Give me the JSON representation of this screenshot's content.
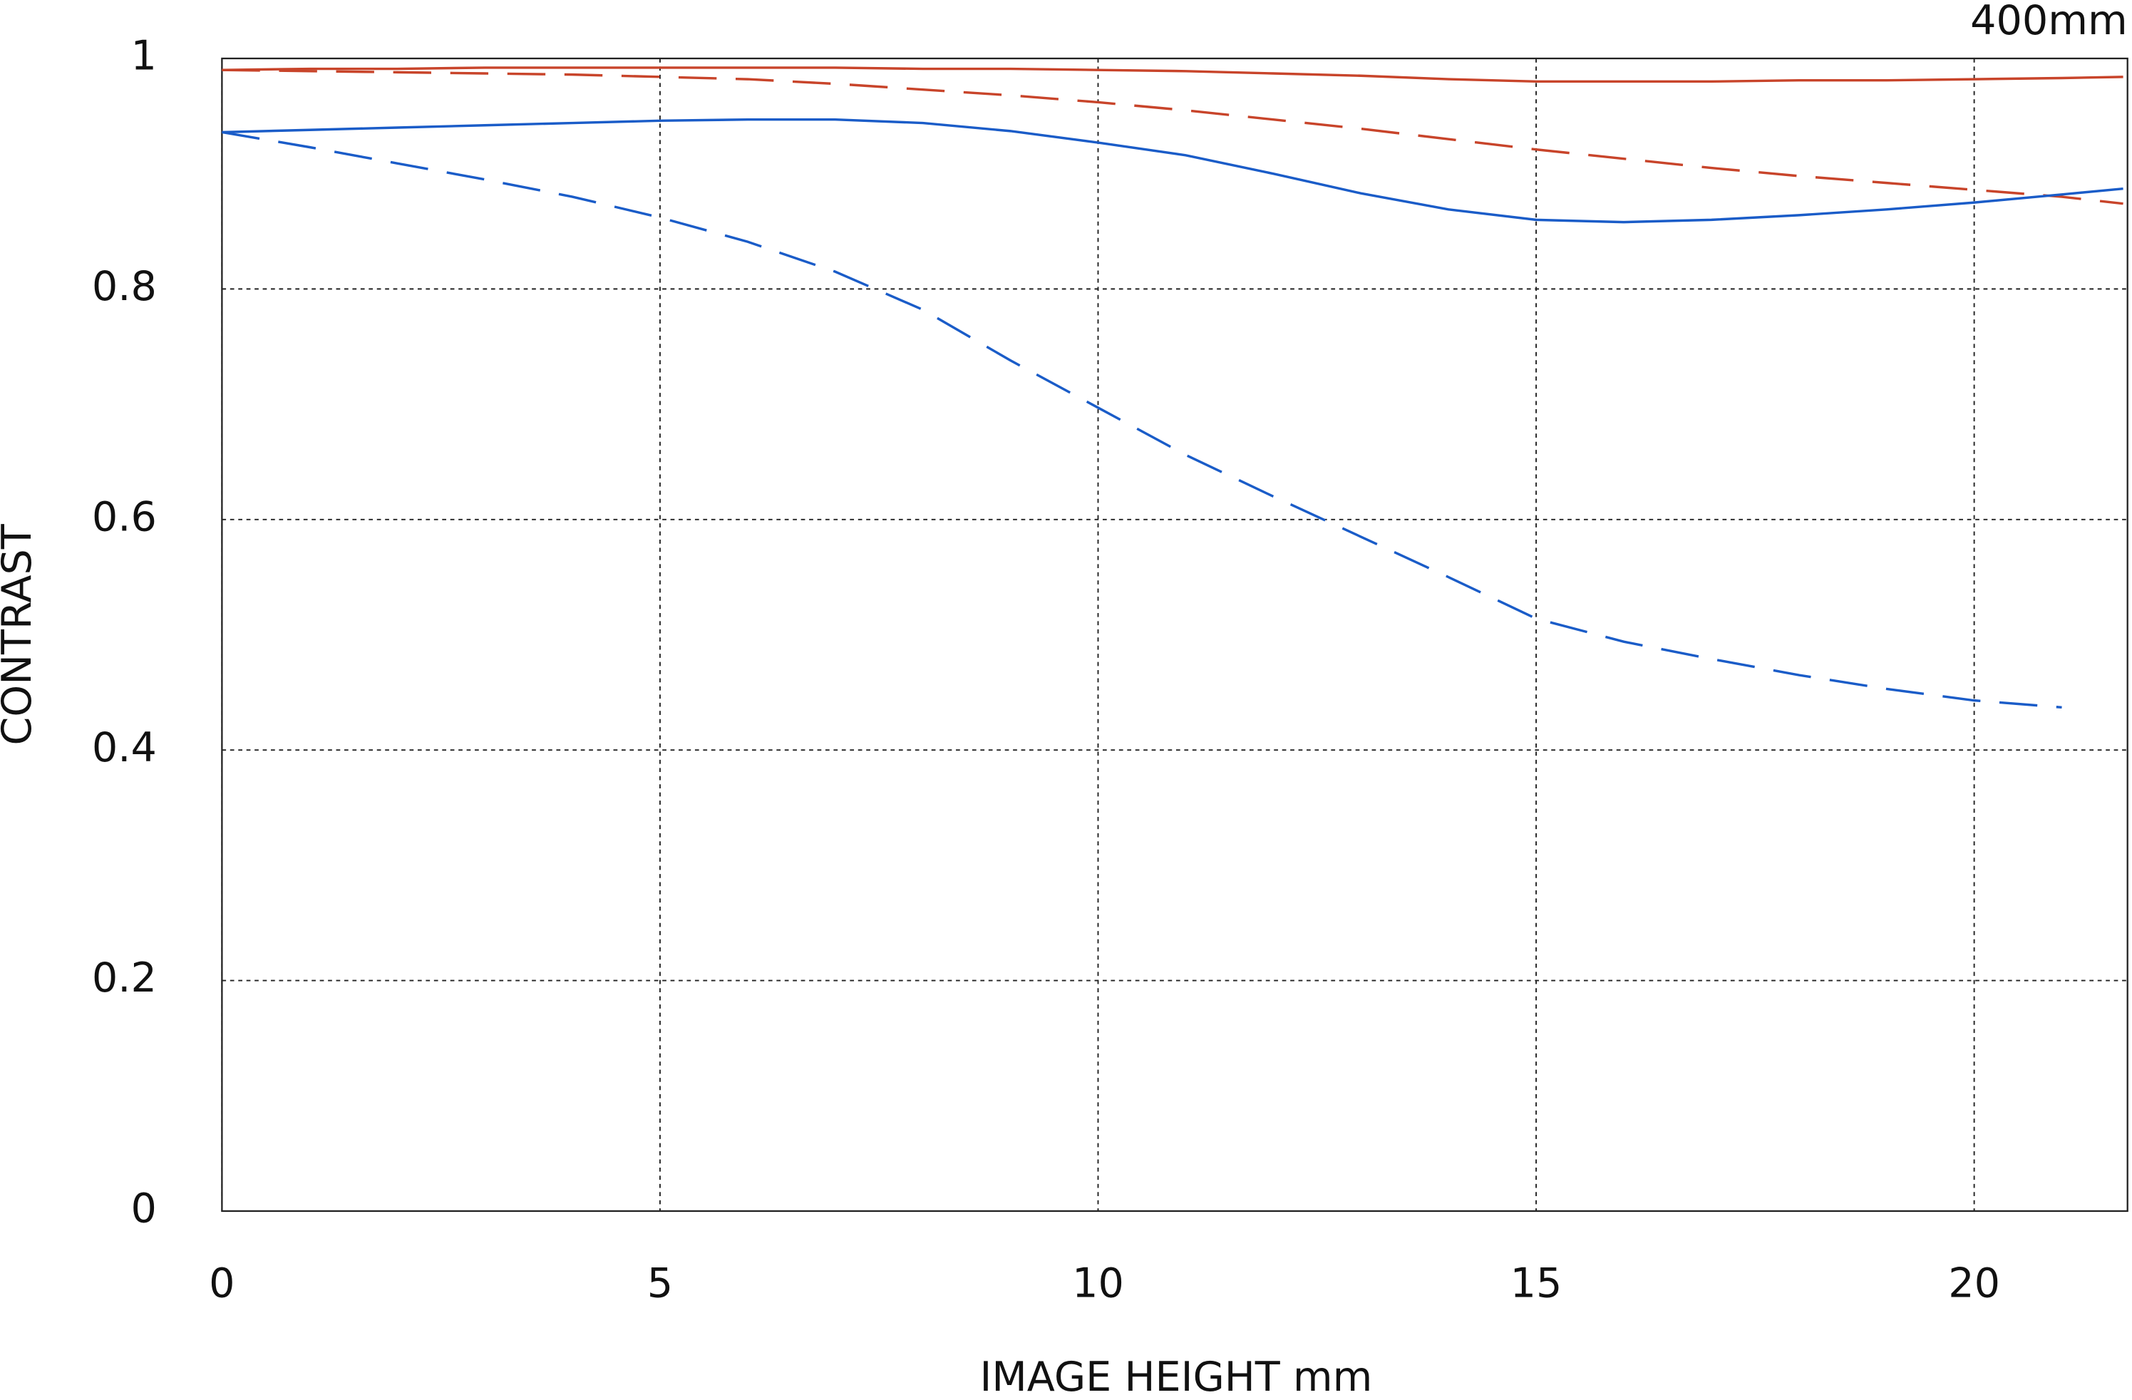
{
  "chart_data": {
    "type": "line",
    "annotation": "400mm",
    "xlabel": "IMAGE HEIGHT  mm",
    "ylabel": "CONTRAST",
    "x": [
      0,
      1,
      2,
      3,
      4,
      5,
      6,
      7,
      8,
      9,
      10,
      11,
      12,
      13,
      14,
      15,
      16,
      17,
      18,
      19,
      20,
      21,
      21.7
    ],
    "series": [
      {
        "color": "#c8442a",
        "style": "solid",
        "values": [
          0.99,
          0.991,
          0.991,
          0.992,
          0.992,
          0.992,
          0.992,
          0.992,
          0.991,
          0.991,
          0.99,
          0.989,
          0.987,
          0.985,
          0.982,
          0.98,
          0.98,
          0.98,
          0.981,
          0.981,
          0.982,
          0.983,
          0.984
        ]
      },
      {
        "color": "#c8442a",
        "style": "dashed",
        "values": [
          0.99,
          0.989,
          0.988,
          0.987,
          0.986,
          0.984,
          0.982,
          0.978,
          0.973,
          0.968,
          0.962,
          0.955,
          0.947,
          0.939,
          0.93,
          0.921,
          0.913,
          0.905,
          0.898,
          0.892,
          0.886,
          0.88,
          0.874
        ]
      },
      {
        "color": "#1a5cc8",
        "style": "solid",
        "values": [
          0.936,
          0.938,
          0.94,
          0.942,
          0.944,
          0.946,
          0.947,
          0.947,
          0.944,
          0.937,
          0.927,
          0.916,
          0.9,
          0.883,
          0.869,
          0.86,
          0.858,
          0.86,
          0.864,
          0.869,
          0.875,
          0.882,
          0.887
        ]
      },
      {
        "color": "#1a5cc8",
        "style": "dashed",
        "values": [
          0.936,
          0.923,
          0.909,
          0.895,
          0.88,
          0.862,
          0.841,
          0.815,
          0.782,
          0.738,
          0.697,
          0.656,
          0.62,
          0.585,
          0.55,
          0.514,
          0.494,
          0.479,
          0.465,
          0.453,
          0.443,
          0.437,
          null
        ]
      }
    ],
    "xlim": [
      0,
      21.75
    ],
    "ylim": [
      0,
      1
    ],
    "xticks": [
      0,
      5,
      10,
      15,
      20
    ],
    "yticks": [
      0,
      0.2,
      0.4,
      0.6,
      0.8,
      1
    ],
    "grid": true
  }
}
